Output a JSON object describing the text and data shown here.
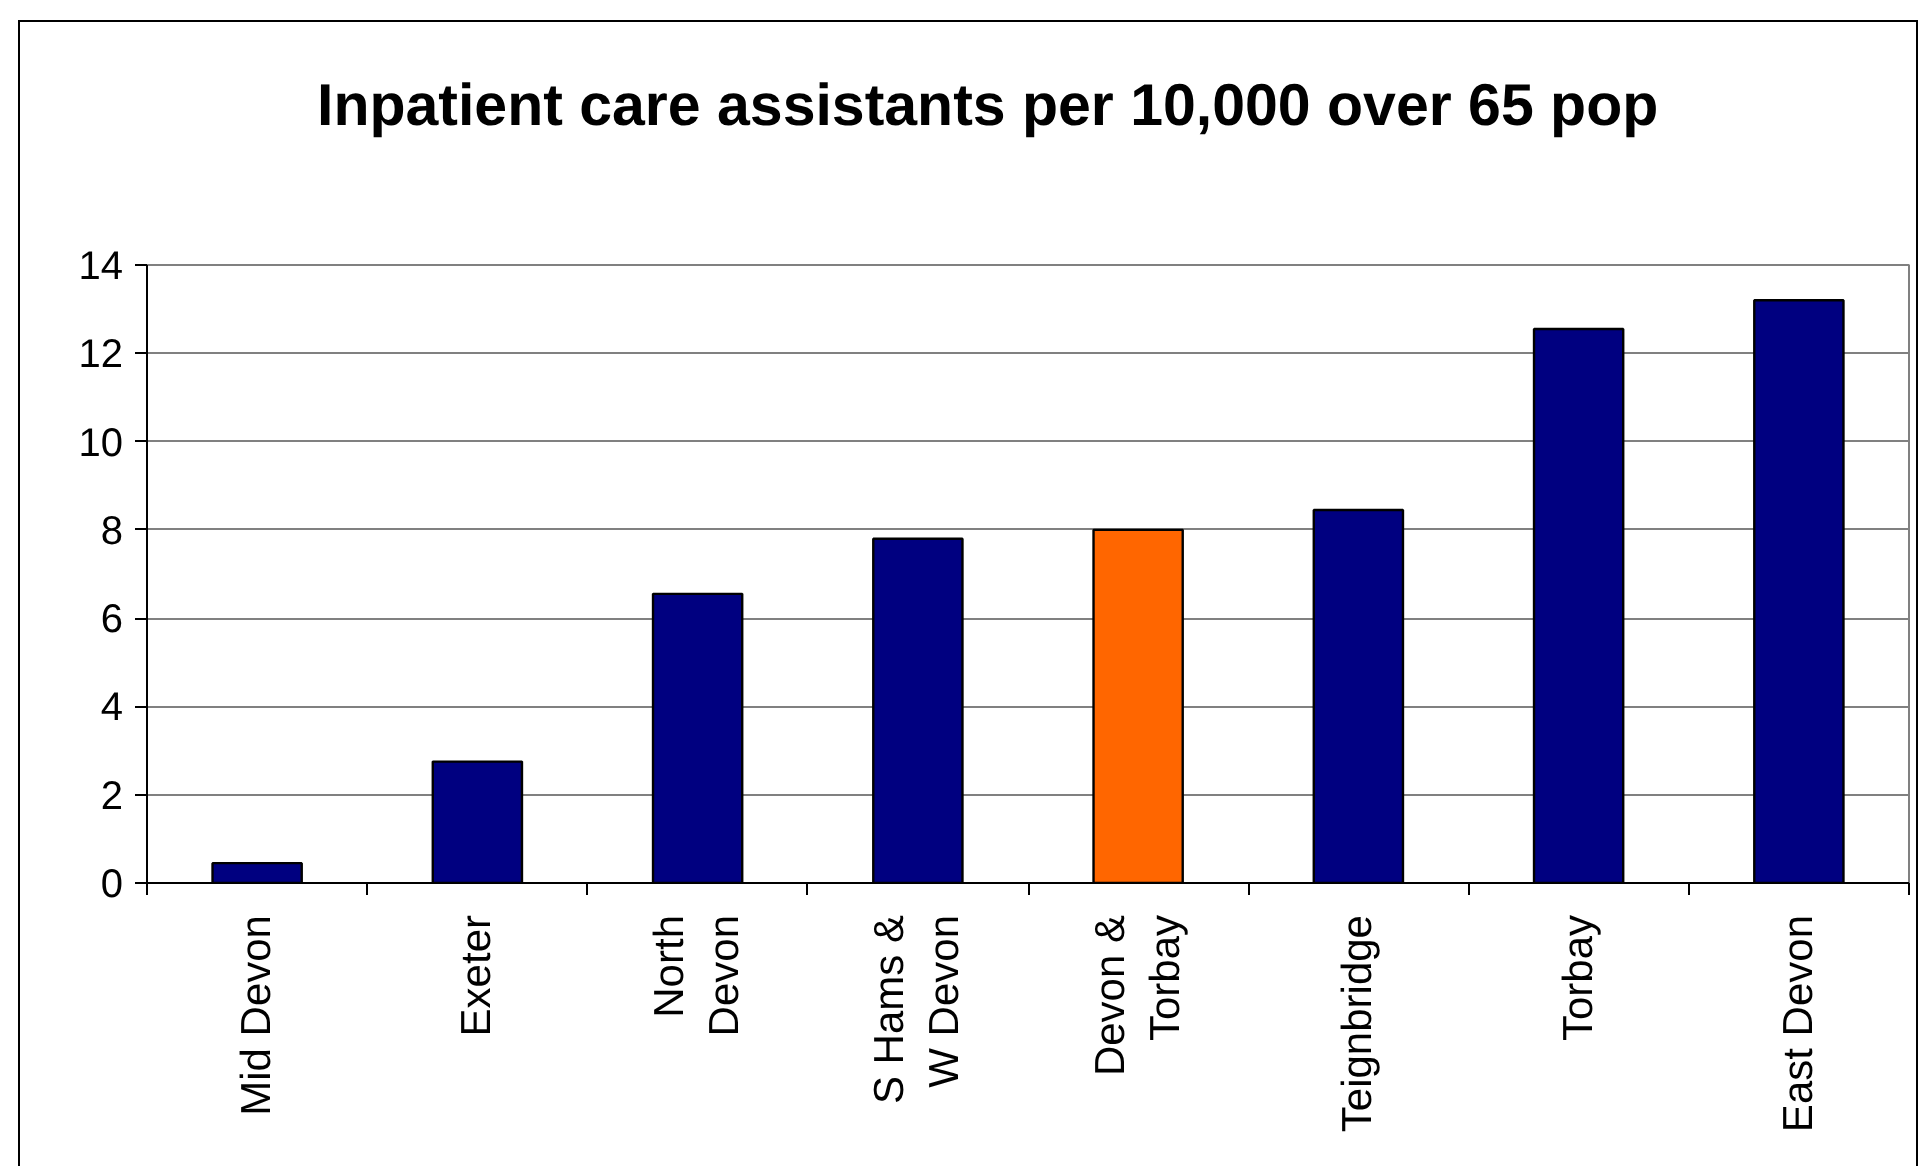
{
  "chart_data": {
    "type": "bar",
    "title": "Inpatient care assistants per 10,000 over 65 pop",
    "categories": [
      "Mid Devon",
      "Exeter",
      "North\nDevon",
      "S Hams &\nW Devon",
      "Devon &\nTorbay",
      "Teignbridge",
      "Torbay",
      "East Devon"
    ],
    "values": [
      0.45,
      2.75,
      6.55,
      7.8,
      8.0,
      8.45,
      12.55,
      13.2
    ],
    "colors": [
      "#000080",
      "#000080",
      "#000080",
      "#000080",
      "#ff6600",
      "#000080",
      "#000080",
      "#000080"
    ],
    "ylim": [
      0,
      14
    ],
    "yticks": [
      0,
      2,
      4,
      6,
      8,
      10,
      12,
      14
    ],
    "grid": "y"
  }
}
